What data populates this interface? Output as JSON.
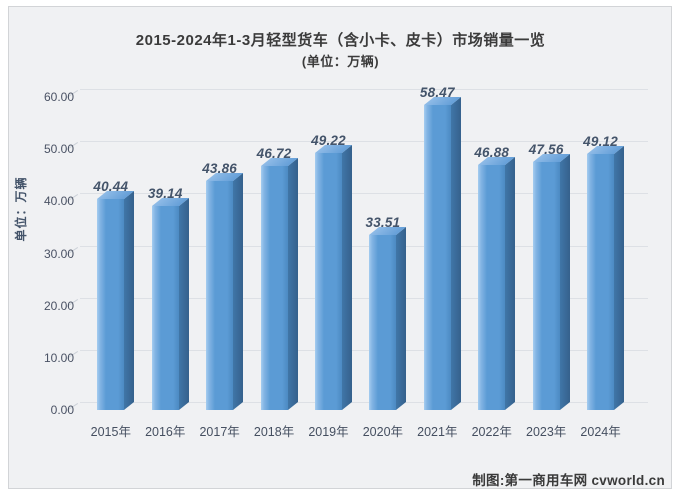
{
  "title": {
    "line1": "2015-2024年1-3月轻型货车（含小卡、皮卡）市场销量一览",
    "line2": "(单位：万辆)"
  },
  "y_axis": {
    "unit_label": "单位：万辆"
  },
  "credit": "制图:第一商用车网 cvworld.cn",
  "colors": {
    "card_background": "#f0f1f3",
    "card_border": "#d2d4d7",
    "bar_front": "#5b9bd5",
    "bar_top": "#7bafe0",
    "bar_side": "#3a6791",
    "value_label": "#44546a",
    "axis_label": "#4a5264",
    "gridline": "#dde0e5",
    "title_text": "#3b3b3b"
  },
  "chart_data": {
    "type": "bar",
    "style_3d": true,
    "title": "2015-2024年1-3月轻型货车（含小卡、皮卡）市场销量一览",
    "subtitle": "(单位：万辆)",
    "ylabel": "单位：万辆",
    "xlabel": "",
    "legend": false,
    "grid": true,
    "ylim": [
      0,
      60
    ],
    "ytick_values": [
      0,
      10,
      20,
      30,
      40,
      50,
      60
    ],
    "ytick_labels": [
      "0.00",
      "10.00",
      "20.00",
      "30.00",
      "40.00",
      "50.00",
      "60.00"
    ],
    "categories": [
      "2015年",
      "2016年",
      "2017年",
      "2018年",
      "2019年",
      "2020年",
      "2021年",
      "2022年",
      "2023年",
      "2024年"
    ],
    "values": [
      40.44,
      39.14,
      43.86,
      46.72,
      49.22,
      33.51,
      58.47,
      46.88,
      47.56,
      49.12
    ],
    "value_labels": [
      "40.44",
      "39.14",
      "43.86",
      "46.72",
      "49.22",
      "33.51",
      "58.47",
      "46.88",
      "47.56",
      "49.12"
    ]
  }
}
